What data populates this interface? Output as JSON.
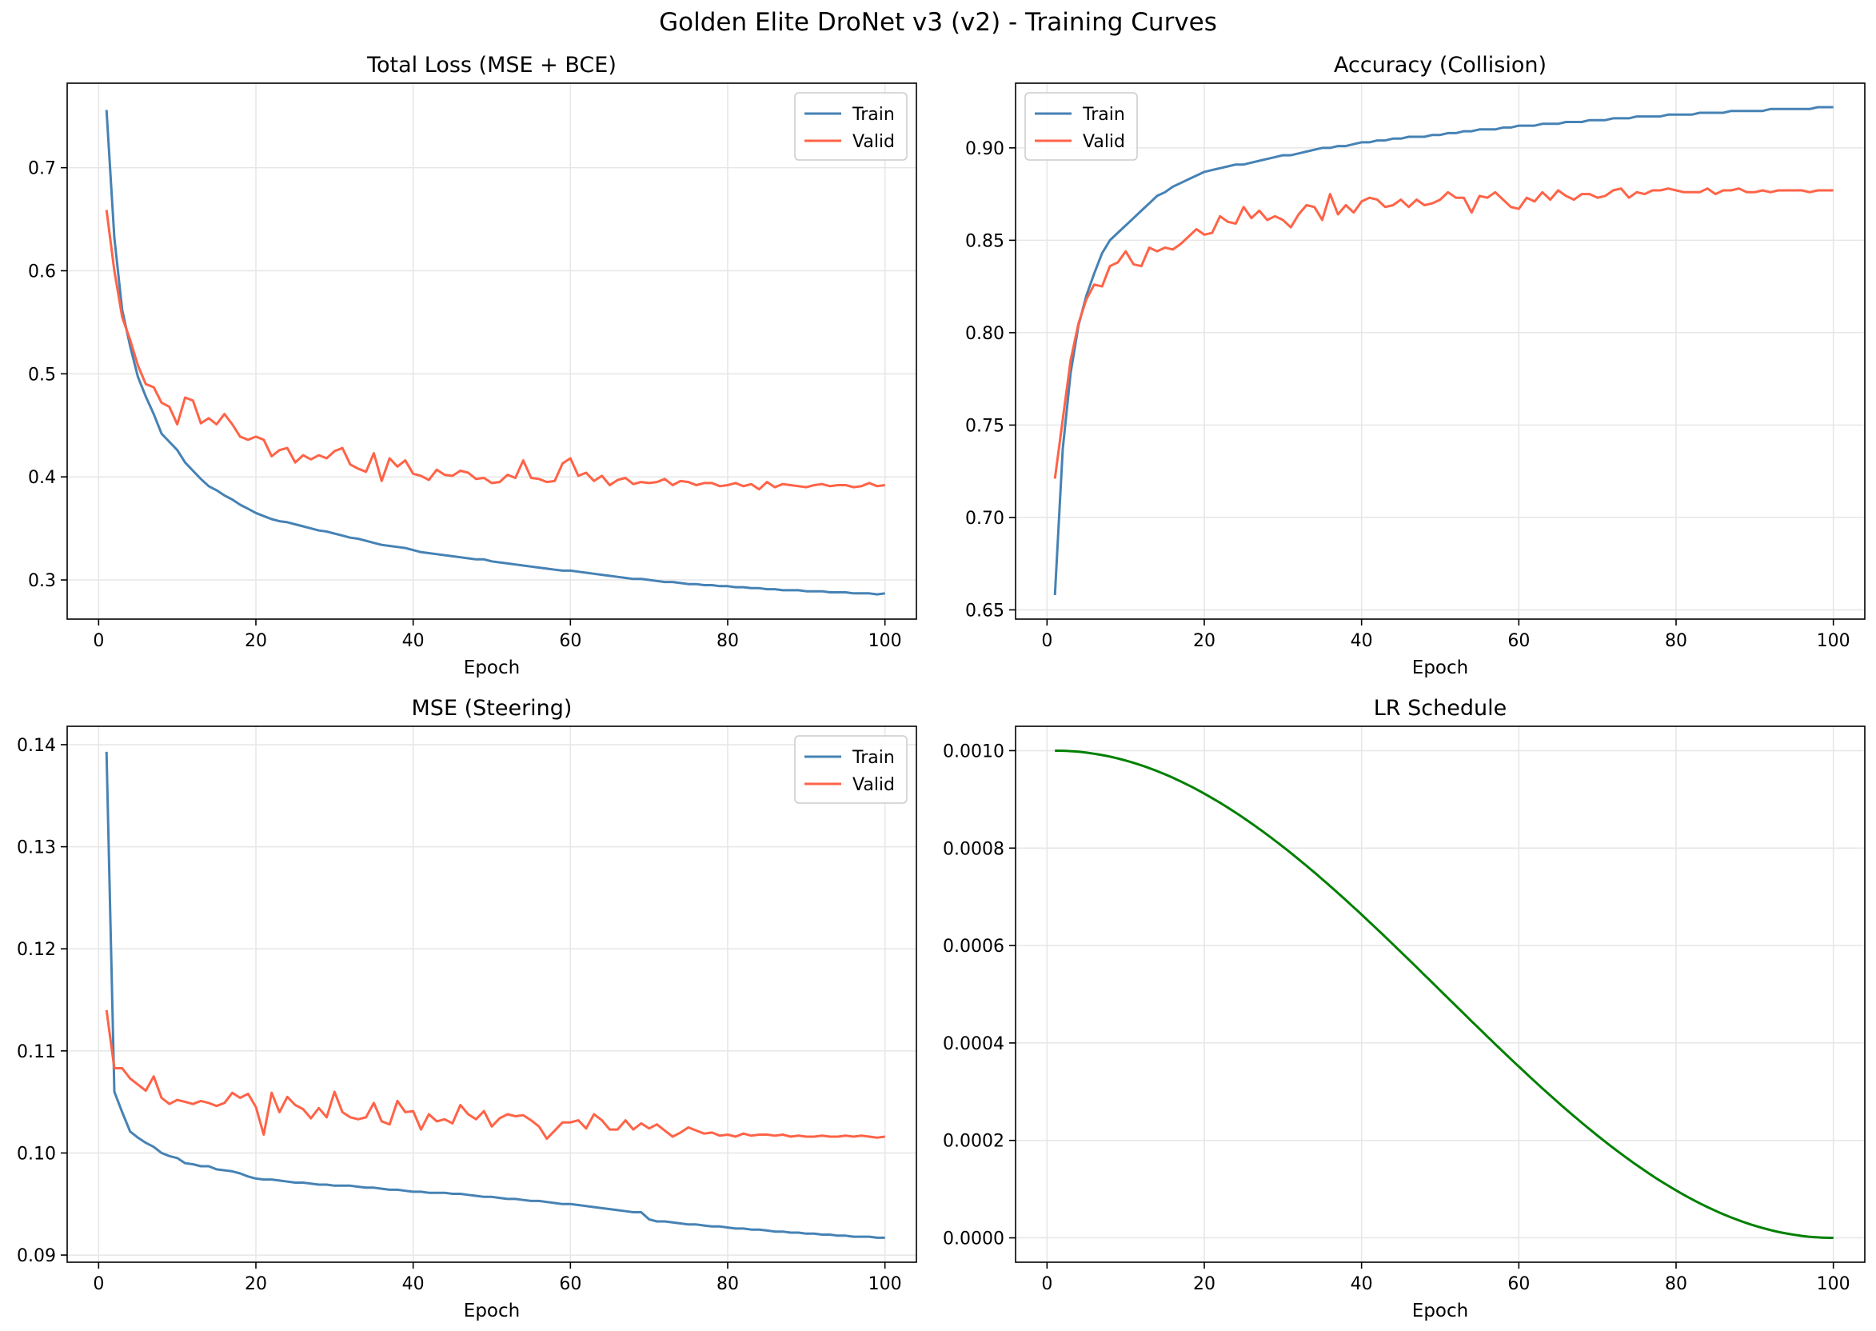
{
  "figure": {
    "suptitle": "Golden Elite DroNet v3 (v2) - Training Curves"
  },
  "colors": {
    "train": "#4682b4",
    "valid": "#ff6347",
    "lr": "#008000",
    "grid": "#e6e6e6",
    "axis": "#000000"
  },
  "chart_data": [
    {
      "type": "line",
      "title": "Total Loss (MSE + BCE)",
      "xlabel": "Epoch",
      "ylabel": "",
      "xlim": [
        -4,
        104
      ],
      "ylim": [
        0.262,
        0.782
      ],
      "xticks": [
        0,
        20,
        40,
        60,
        80,
        100
      ],
      "yticks": [
        0.3,
        0.4,
        0.5,
        0.6,
        0.7
      ],
      "grid": true,
      "legend": "top-right",
      "series": [
        {
          "name": "Train",
          "color": "train",
          "x_start": 1,
          "values": [
            0.756,
            0.632,
            0.562,
            0.527,
            0.497,
            0.478,
            0.461,
            0.442,
            0.434,
            0.426,
            0.414,
            0.406,
            0.398,
            0.391,
            0.387,
            0.382,
            0.378,
            0.373,
            0.369,
            0.365,
            0.362,
            0.359,
            0.357,
            0.356,
            0.354,
            0.352,
            0.35,
            0.348,
            0.347,
            0.345,
            0.343,
            0.341,
            0.34,
            0.338,
            0.336,
            0.334,
            0.333,
            0.332,
            0.331,
            0.329,
            0.327,
            0.326,
            0.325,
            0.324,
            0.323,
            0.322,
            0.321,
            0.32,
            0.32,
            0.318,
            0.317,
            0.316,
            0.315,
            0.314,
            0.313,
            0.312,
            0.311,
            0.31,
            0.309,
            0.309,
            0.308,
            0.307,
            0.306,
            0.305,
            0.304,
            0.303,
            0.302,
            0.301,
            0.301,
            0.3,
            0.299,
            0.298,
            0.298,
            0.297,
            0.296,
            0.296,
            0.295,
            0.295,
            0.294,
            0.294,
            0.293,
            0.293,
            0.292,
            0.292,
            0.291,
            0.291,
            0.29,
            0.29,
            0.29,
            0.289,
            0.289,
            0.289,
            0.288,
            0.288,
            0.288,
            0.287,
            0.287,
            0.287,
            0.286,
            0.287
          ]
        },
        {
          "name": "Valid",
          "color": "valid",
          "x_start": 1,
          "values": [
            0.659,
            0.6,
            0.555,
            0.533,
            0.508,
            0.49,
            0.487,
            0.472,
            0.468,
            0.451,
            0.477,
            0.474,
            0.452,
            0.457,
            0.451,
            0.461,
            0.451,
            0.439,
            0.436,
            0.439,
            0.436,
            0.42,
            0.426,
            0.428,
            0.414,
            0.421,
            0.417,
            0.421,
            0.418,
            0.425,
            0.428,
            0.412,
            0.408,
            0.405,
            0.423,
            0.396,
            0.418,
            0.41,
            0.416,
            0.403,
            0.401,
            0.397,
            0.407,
            0.402,
            0.401,
            0.406,
            0.404,
            0.398,
            0.399,
            0.394,
            0.395,
            0.402,
            0.399,
            0.416,
            0.399,
            0.398,
            0.395,
            0.396,
            0.413,
            0.418,
            0.401,
            0.404,
            0.396,
            0.401,
            0.392,
            0.397,
            0.399,
            0.393,
            0.395,
            0.394,
            0.395,
            0.398,
            0.392,
            0.396,
            0.395,
            0.392,
            0.394,
            0.394,
            0.391,
            0.392,
            0.394,
            0.391,
            0.393,
            0.388,
            0.395,
            0.39,
            0.393,
            0.392,
            0.391,
            0.39,
            0.392,
            0.393,
            0.391,
            0.392,
            0.392,
            0.39,
            0.391,
            0.394,
            0.391,
            0.392
          ]
        }
      ]
    },
    {
      "type": "line",
      "title": "Accuracy (Collision)",
      "xlabel": "Epoch",
      "ylabel": "",
      "xlim": [
        -4,
        104
      ],
      "ylim": [
        0.645,
        0.935
      ],
      "xticks": [
        0,
        20,
        40,
        60,
        80,
        100
      ],
      "yticks": [
        0.65,
        0.7,
        0.75,
        0.8,
        0.85,
        0.9
      ],
      "grid": true,
      "legend": "top-left",
      "series": [
        {
          "name": "Train",
          "color": "train",
          "x_start": 1,
          "values": [
            0.658,
            0.737,
            0.778,
            0.804,
            0.82,
            0.832,
            0.843,
            0.85,
            0.854,
            0.858,
            0.862,
            0.866,
            0.87,
            0.874,
            0.876,
            0.879,
            0.881,
            0.883,
            0.885,
            0.887,
            0.888,
            0.889,
            0.89,
            0.891,
            0.891,
            0.892,
            0.893,
            0.894,
            0.895,
            0.896,
            0.896,
            0.897,
            0.898,
            0.899,
            0.9,
            0.9,
            0.901,
            0.901,
            0.902,
            0.903,
            0.903,
            0.904,
            0.904,
            0.905,
            0.905,
            0.906,
            0.906,
            0.906,
            0.907,
            0.907,
            0.908,
            0.908,
            0.909,
            0.909,
            0.91,
            0.91,
            0.91,
            0.911,
            0.911,
            0.912,
            0.912,
            0.912,
            0.913,
            0.913,
            0.913,
            0.914,
            0.914,
            0.914,
            0.915,
            0.915,
            0.915,
            0.916,
            0.916,
            0.916,
            0.917,
            0.917,
            0.917,
            0.917,
            0.918,
            0.918,
            0.918,
            0.918,
            0.919,
            0.919,
            0.919,
            0.919,
            0.92,
            0.92,
            0.92,
            0.92,
            0.92,
            0.921,
            0.921,
            0.921,
            0.921,
            0.921,
            0.921,
            0.922,
            0.922,
            0.922
          ]
        },
        {
          "name": "Valid",
          "color": "valid",
          "x_start": 1,
          "values": [
            0.721,
            0.753,
            0.785,
            0.805,
            0.818,
            0.826,
            0.825,
            0.836,
            0.838,
            0.844,
            0.837,
            0.836,
            0.846,
            0.844,
            0.846,
            0.845,
            0.848,
            0.852,
            0.856,
            0.853,
            0.854,
            0.863,
            0.86,
            0.859,
            0.868,
            0.862,
            0.866,
            0.861,
            0.863,
            0.861,
            0.857,
            0.864,
            0.869,
            0.868,
            0.861,
            0.875,
            0.864,
            0.869,
            0.865,
            0.871,
            0.873,
            0.872,
            0.868,
            0.869,
            0.872,
            0.868,
            0.872,
            0.869,
            0.87,
            0.872,
            0.876,
            0.873,
            0.873,
            0.865,
            0.874,
            0.873,
            0.876,
            0.872,
            0.868,
            0.867,
            0.873,
            0.871,
            0.876,
            0.872,
            0.877,
            0.874,
            0.872,
            0.875,
            0.875,
            0.873,
            0.874,
            0.877,
            0.878,
            0.873,
            0.876,
            0.875,
            0.877,
            0.877,
            0.878,
            0.877,
            0.876,
            0.876,
            0.876,
            0.878,
            0.875,
            0.877,
            0.877,
            0.878,
            0.876,
            0.876,
            0.877,
            0.876,
            0.877,
            0.877,
            0.877,
            0.877,
            0.876,
            0.877,
            0.877,
            0.877
          ]
        }
      ]
    },
    {
      "type": "line",
      "title": "MSE (Steering)",
      "xlabel": "Epoch",
      "ylabel": "",
      "xlim": [
        -4,
        104
      ],
      "ylim": [
        0.0893,
        0.1418
      ],
      "xticks": [
        0,
        20,
        40,
        60,
        80,
        100
      ],
      "yticks": [
        0.09,
        0.1,
        0.11,
        0.12,
        0.13,
        0.14
      ],
      "grid": true,
      "legend": "top-right",
      "series": [
        {
          "name": "Train",
          "color": "train",
          "x_start": 1,
          "values": [
            0.1393,
            0.106,
            0.104,
            0.1021,
            0.1015,
            0.101,
            0.1006,
            0.1,
            0.0997,
            0.0995,
            0.099,
            0.0989,
            0.0987,
            0.0987,
            0.0984,
            0.0983,
            0.0982,
            0.098,
            0.0977,
            0.0975,
            0.0974,
            0.0974,
            0.0973,
            0.0972,
            0.0971,
            0.0971,
            0.097,
            0.0969,
            0.0969,
            0.0968,
            0.0968,
            0.0968,
            0.0967,
            0.0966,
            0.0966,
            0.0965,
            0.0964,
            0.0964,
            0.0963,
            0.0962,
            0.0962,
            0.0961,
            0.0961,
            0.0961,
            0.096,
            0.096,
            0.0959,
            0.0958,
            0.0957,
            0.0957,
            0.0956,
            0.0955,
            0.0955,
            0.0954,
            0.0953,
            0.0953,
            0.0952,
            0.0951,
            0.095,
            0.095,
            0.0949,
            0.0948,
            0.0947,
            0.0946,
            0.0945,
            0.0944,
            0.0943,
            0.0942,
            0.0942,
            0.0935,
            0.0933,
            0.0933,
            0.0932,
            0.0931,
            0.093,
            0.093,
            0.0929,
            0.0928,
            0.0928,
            0.0927,
            0.0926,
            0.0926,
            0.0925,
            0.0925,
            0.0924,
            0.0923,
            0.0923,
            0.0922,
            0.0922,
            0.0921,
            0.0921,
            0.092,
            0.092,
            0.0919,
            0.0919,
            0.0918,
            0.0918,
            0.0918,
            0.0917,
            0.0917
          ]
        },
        {
          "name": "Valid",
          "color": "valid",
          "x_start": 1,
          "values": [
            0.114,
            0.1083,
            0.1083,
            0.1073,
            0.1067,
            0.1061,
            0.1075,
            0.1054,
            0.1048,
            0.1052,
            0.105,
            0.1048,
            0.1051,
            0.1049,
            0.1046,
            0.1049,
            0.1059,
            0.1054,
            0.1058,
            0.1045,
            0.1018,
            0.1059,
            0.104,
            0.1055,
            0.1047,
            0.1043,
            0.1034,
            0.1044,
            0.1035,
            0.106,
            0.104,
            0.1035,
            0.1033,
            0.1035,
            0.1049,
            0.1031,
            0.1028,
            0.1051,
            0.104,
            0.1041,
            0.1023,
            0.1038,
            0.1031,
            0.1033,
            0.1029,
            0.1047,
            0.1038,
            0.1033,
            0.1041,
            0.1026,
            0.1034,
            0.1038,
            0.1036,
            0.1037,
            0.1032,
            0.1026,
            0.1014,
            0.1022,
            0.103,
            0.103,
            0.1032,
            0.1024,
            0.1038,
            0.1032,
            0.1023,
            0.1023,
            0.1032,
            0.1023,
            0.1029,
            0.1024,
            0.1028,
            0.1022,
            0.1016,
            0.102,
            0.1025,
            0.1022,
            0.1019,
            0.102,
            0.1017,
            0.1018,
            0.1016,
            0.1019,
            0.1017,
            0.1018,
            0.1018,
            0.1017,
            0.1018,
            0.1016,
            0.1017,
            0.1016,
            0.1016,
            0.1017,
            0.1016,
            0.1016,
            0.1017,
            0.1016,
            0.1017,
            0.1016,
            0.1015,
            0.1016
          ]
        }
      ]
    },
    {
      "type": "line",
      "title": "LR Schedule",
      "xlabel": "Epoch",
      "ylabel": "",
      "xlim": [
        -4,
        104
      ],
      "ylim": [
        -5e-05,
        0.00105
      ],
      "xticks": [
        0,
        20,
        40,
        60,
        80,
        100
      ],
      "yticks": [
        0.0,
        0.0002,
        0.0004,
        0.0006,
        0.0008,
        0.001
      ],
      "ytick_decimals": 4,
      "grid": true,
      "legend": "none",
      "series": [
        {
          "name": "",
          "color": "lr",
          "function": "cosine",
          "x_range": [
            1,
            100
          ],
          "lr_max": 0.001,
          "lr_min": 0.0
        }
      ]
    }
  ]
}
